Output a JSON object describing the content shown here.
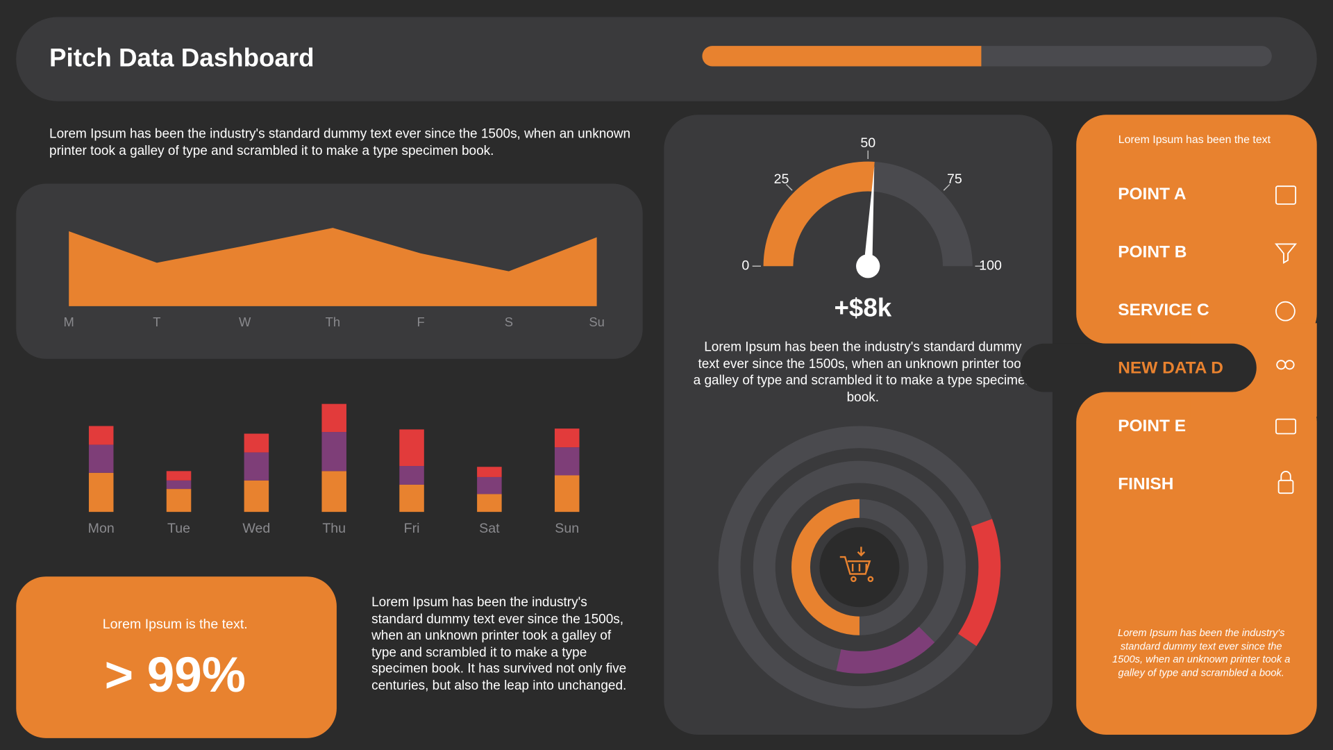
{
  "header": {
    "title": "Pitch Data Dashboard"
  },
  "texts": {
    "intro": "Lorem Ipsum has been the industry's standard dummy text ever since the 1500s, when an unknown printer took a galley of type and scrambled it to make a type specimen book.",
    "body": "Lorem Ipsum has been the industry's standard dummy text ever since the 1500s, when an unknown printer took a galley of type and scrambled it to make a type specimen book. It has survived not only five centuries, but also the leap into unchanged.",
    "gauge_body": "Lorem Ipsum has been the industry's standard dummy text ever since the 1500s, when an unknown printer took a galley of type and scrambled it to make a type specimen book."
  },
  "kpi": {
    "caption": "Lorem Ipsum is the text.",
    "value": "> 99%"
  },
  "nav": {
    "caption": "Lorem Ipsum has been the text",
    "items": [
      {
        "label": "POINT A"
      },
      {
        "label": "POINT B"
      },
      {
        "label": "SERVICE C"
      },
      {
        "label": "NEW DATA D",
        "active": true
      },
      {
        "label": "POINT E"
      },
      {
        "label": "FINISH"
      }
    ],
    "footer": "Lorem Ipsum has been the industry's standard dummy text ever since the 1500s, when an unknown printer took a galley of type and scrambled  a book."
  },
  "chart_data": [
    {
      "type": "progress",
      "values": [
        49
      ],
      "xlim": [
        0,
        100
      ],
      "color": "#e8822f"
    },
    {
      "type": "area",
      "categories": [
        "M",
        "T",
        "W",
        "Th",
        "F",
        "S",
        "Su"
      ],
      "values": [
        88,
        51,
        71,
        92,
        62,
        41,
        81
      ],
      "ylim": [
        0,
        100
      ],
      "color": "#e8822f"
    },
    {
      "type": "stacked-bar",
      "categories": [
        "Mon",
        "Tue",
        "Wed",
        "Thu",
        "Fri",
        "Sat",
        "Sun"
      ],
      "ylim": [
        0,
        140
      ],
      "series": [
        {
          "color": "#e8822f",
          "values": [
            46,
            27,
            37,
            48,
            32,
            21,
            43
          ]
        },
        {
          "color": "#7e3e78",
          "values": [
            33,
            10,
            33,
            46,
            22,
            20,
            33
          ]
        },
        {
          "color": "#e23b3b",
          "values": [
            22,
            11,
            22,
            33,
            43,
            12,
            22
          ]
        }
      ]
    },
    {
      "type": "gauge",
      "value": 52,
      "xlim": [
        0,
        100
      ],
      "xticks": [
        0,
        25,
        50,
        75,
        100
      ],
      "color": "#e8822f",
      "annotation": "+$8k"
    },
    {
      "type": "radial",
      "values": [
        15,
        16,
        50
      ],
      "xlim": [
        0,
        100
      ],
      "colors": [
        "#e23b3b",
        "#7e3e78",
        "#e8822f"
      ]
    }
  ]
}
